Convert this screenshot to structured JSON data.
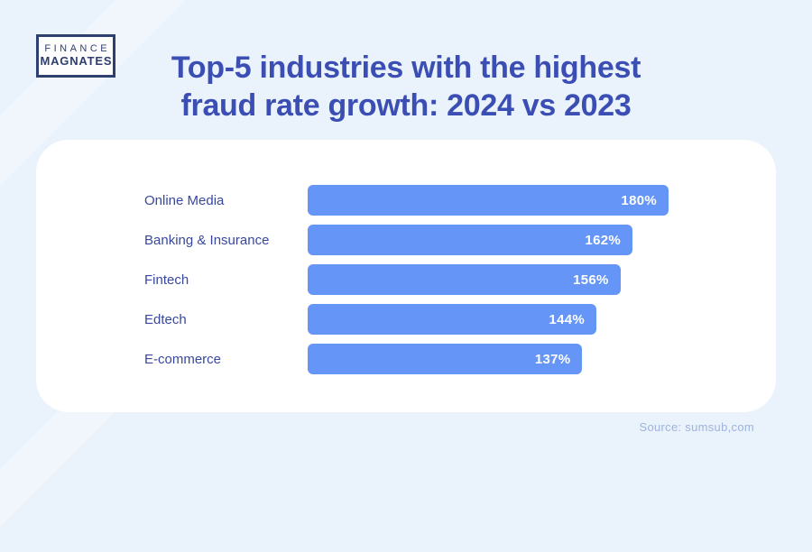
{
  "page": {
    "background_color": "#EAF2FB",
    "card_color": "#FFFFFF"
  },
  "logo": {
    "line1": "FINANCE",
    "line2": "MAGNATES",
    "color": "#2E3E6E"
  },
  "title": {
    "line1": "Top-5 industries with the highest",
    "line2": "fraud rate growth: 2024 vs 2023",
    "color": "#3B4EB4"
  },
  "chart_data": {
    "type": "bar",
    "orientation": "horizontal",
    "title": "Top-5 industries with the highest fraud rate growth: 2024 vs 2023",
    "categories": [
      "Online Media",
      "Banking & Insurance",
      "Fintech",
      "Edtech",
      "E-commerce"
    ],
    "values": [
      180,
      162,
      156,
      144,
      137
    ],
    "value_suffix": "%",
    "xlim": [
      0,
      180
    ],
    "bar_color": "#6495F7",
    "category_label_color": "#39489F",
    "value_label_color": "#FFFFFF",
    "grid": false,
    "legend": false,
    "value_labels": [
      "180%",
      "162%",
      "156%",
      "144%",
      "137%"
    ]
  },
  "source": "Source: sumsub,com"
}
